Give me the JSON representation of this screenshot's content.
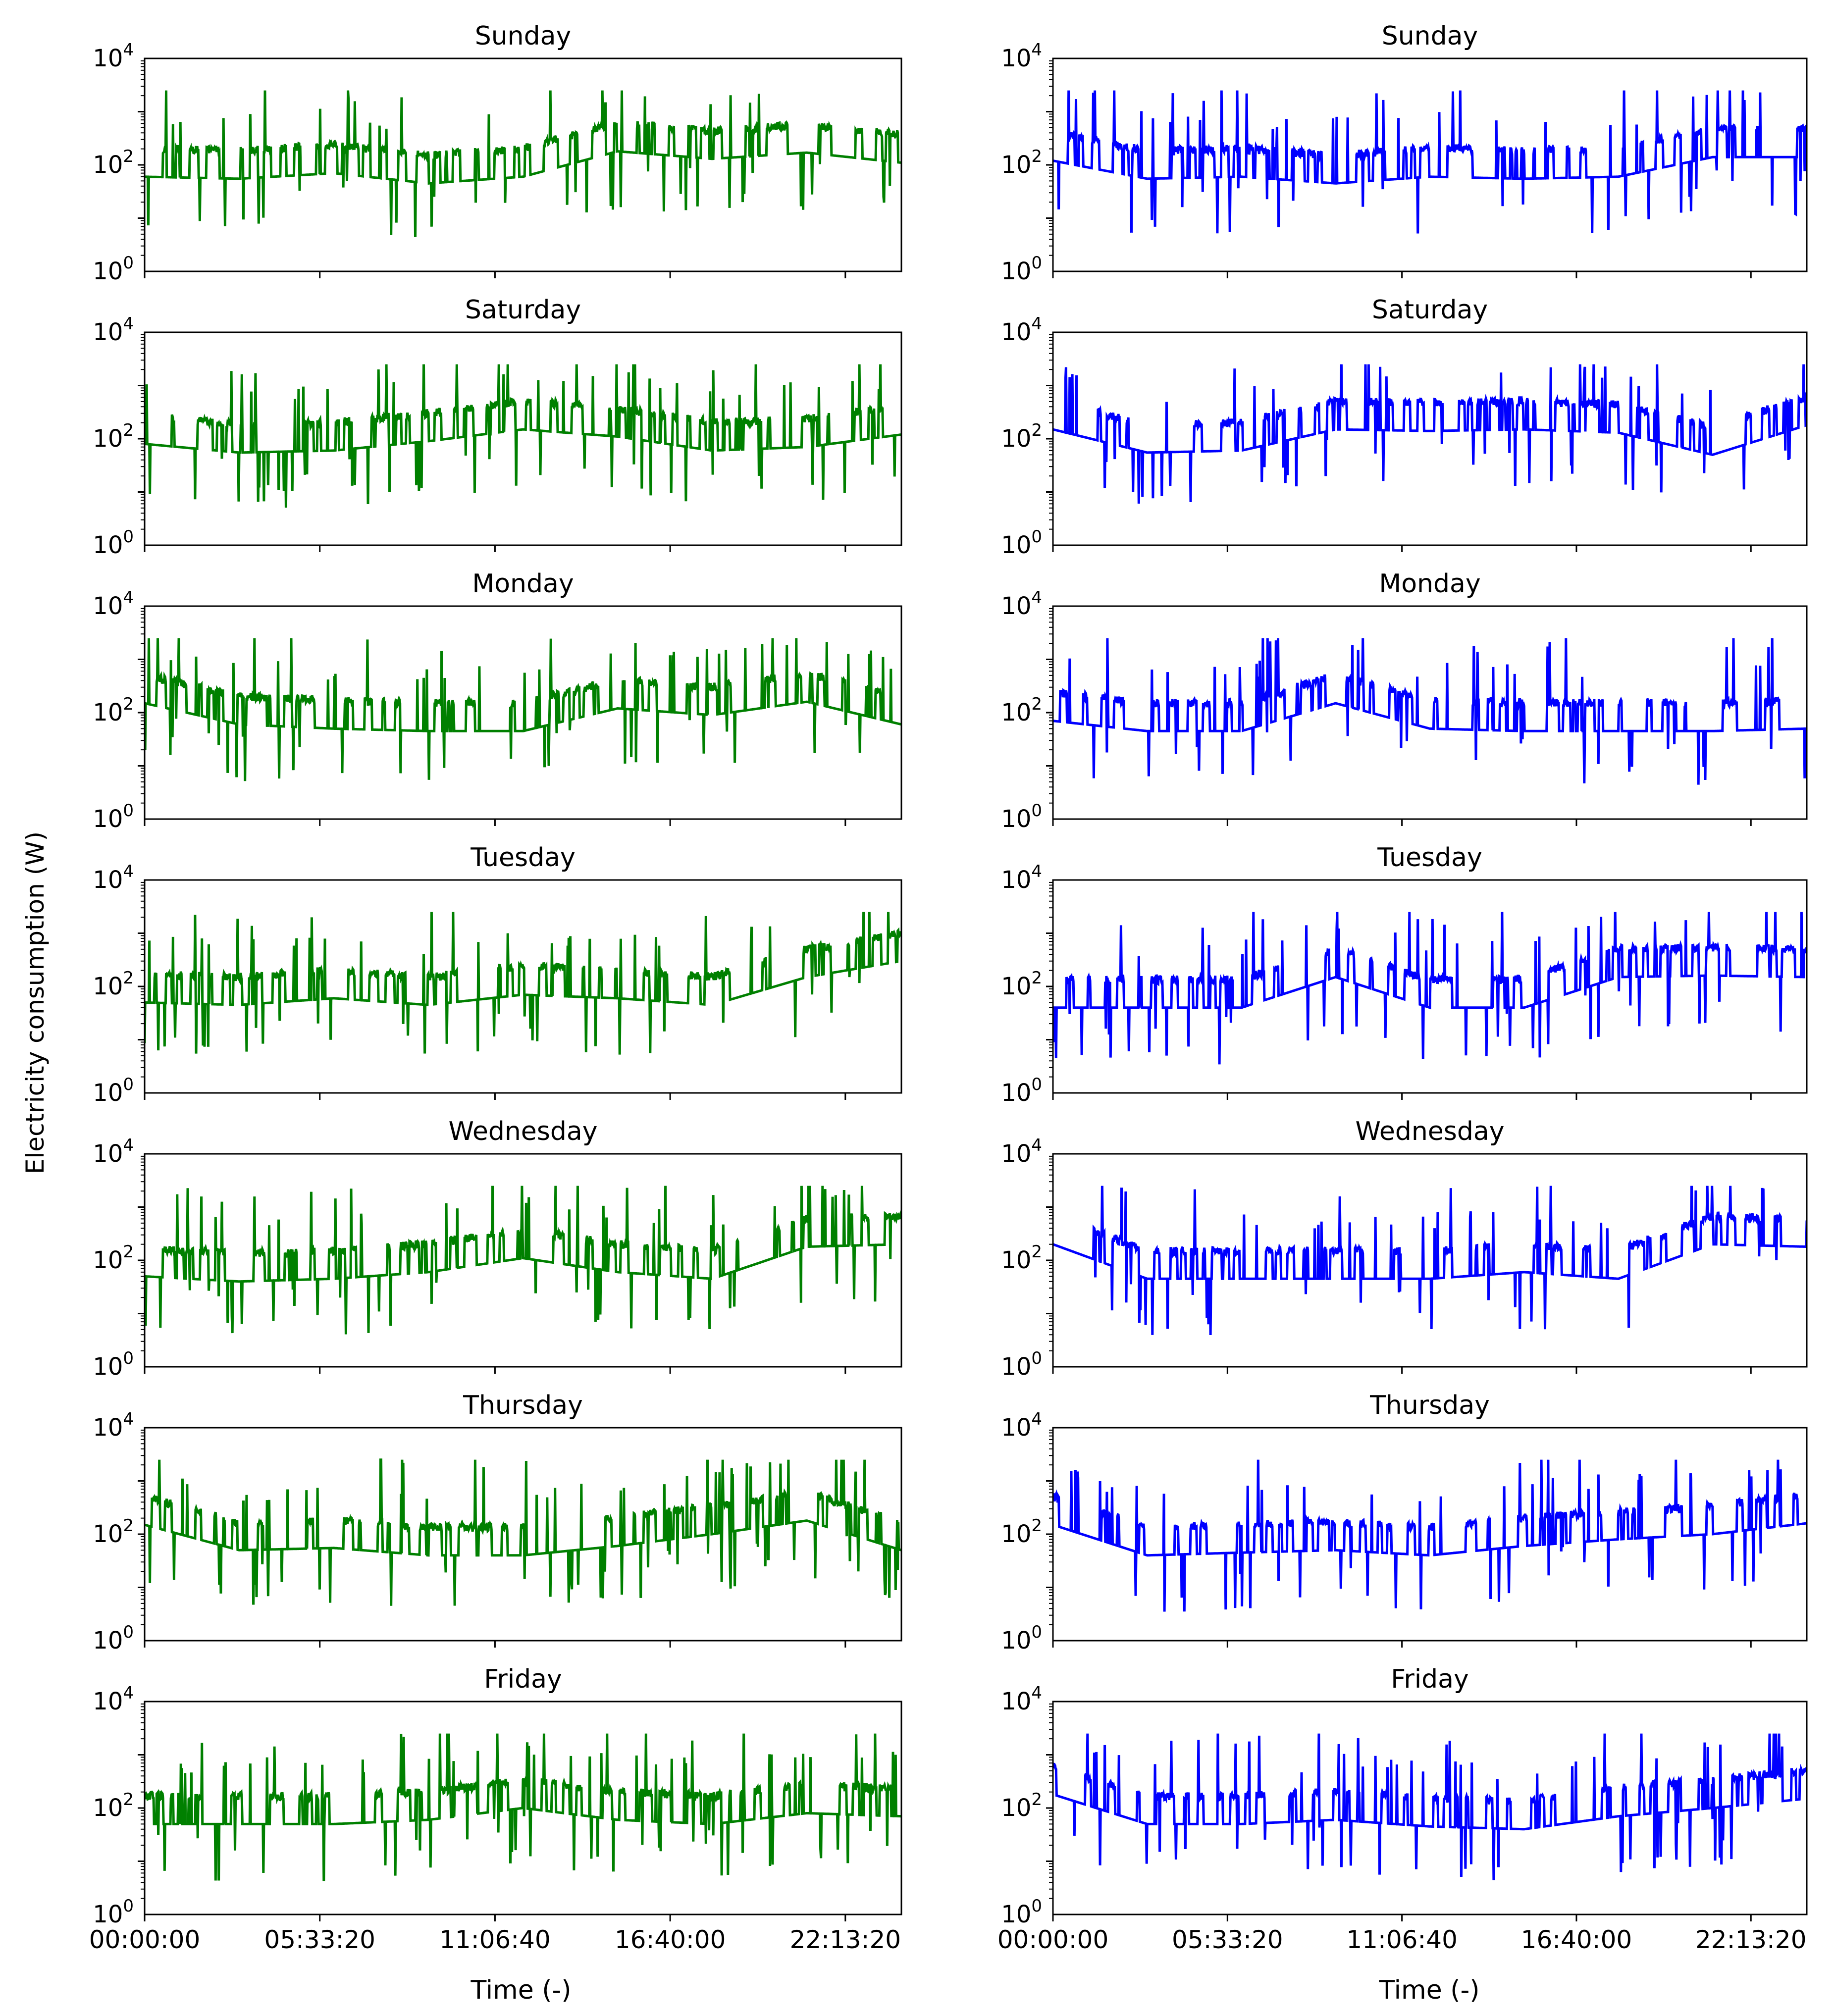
{
  "figure": {
    "ylabel": "Electricity consumption (W)",
    "xlabel": "Time (-)",
    "xticklabels": [
      "00:00:00",
      "05:33:20",
      "11:06:40",
      "16:40:00",
      "22:13:20"
    ],
    "yticklabels": [
      {
        "base": "10",
        "exp": "0"
      },
      {
        "base": "10",
        "exp": "2"
      },
      {
        "base": "10",
        "exp": "4"
      }
    ]
  },
  "colors": {
    "left_series": "#008000",
    "right_series": "#0000ff",
    "axes": "#000000"
  },
  "chart_data": [
    {
      "type": "line",
      "title": "Sunday",
      "column": "left",
      "yscale": "log",
      "ylim": [
        1,
        10000
      ],
      "xlim": [
        "00:00:00",
        "24:00:00"
      ],
      "series": [
        {
          "color": "#008000",
          "x": [
            "00:00:00",
            "03:00:00",
            "06:00:00",
            "09:00:00",
            "12:00:00",
            "15:00:00",
            "18:00:00",
            "21:00:00",
            "24:00:00"
          ],
          "values": [
            60,
            55,
            70,
            45,
            60,
            180,
            130,
            170,
            110
          ]
        }
      ]
    },
    {
      "type": "line",
      "title": "Sunday",
      "column": "right",
      "yscale": "log",
      "ylim": [
        1,
        10000
      ],
      "xlim": [
        "00:00:00",
        "24:00:00"
      ],
      "series": [
        {
          "color": "#0000ff",
          "x": [
            "00:00:00",
            "03:00:00",
            "06:00:00",
            "09:00:00",
            "12:00:00",
            "15:00:00",
            "18:00:00",
            "21:00:00",
            "24:00:00"
          ],
          "values": [
            120,
            55,
            60,
            45,
            60,
            55,
            60,
            140,
            140
          ]
        }
      ]
    },
    {
      "type": "line",
      "title": "Saturday",
      "column": "left",
      "yscale": "log",
      "ylim": [
        1,
        10000
      ],
      "xlim": [
        "00:00:00",
        "24:00:00"
      ],
      "series": [
        {
          "color": "#008000",
          "x": [
            "00:00:00",
            "03:00:00",
            "06:00:00",
            "09:00:00",
            "12:00:00",
            "15:00:00",
            "18:00:00",
            "21:00:00",
            "24:00:00"
          ],
          "values": [
            80,
            55,
            60,
            90,
            150,
            110,
            60,
            70,
            120
          ]
        }
      ]
    },
    {
      "type": "line",
      "title": "Saturday",
      "column": "right",
      "yscale": "log",
      "ylim": [
        1,
        10000
      ],
      "xlim": [
        "00:00:00",
        "24:00:00"
      ],
      "series": [
        {
          "color": "#0000ff",
          "x": [
            "00:00:00",
            "03:00:00",
            "06:00:00",
            "09:00:00",
            "12:00:00",
            "15:00:00",
            "18:00:00",
            "21:00:00",
            "24:00:00"
          ],
          "values": [
            150,
            55,
            60,
            150,
            140,
            150,
            130,
            50,
            180
          ]
        }
      ]
    },
    {
      "type": "line",
      "title": "Monday",
      "column": "left",
      "yscale": "log",
      "ylim": [
        1,
        10000
      ],
      "xlim": [
        "00:00:00",
        "24:00:00"
      ],
      "series": [
        {
          "color": "#008000",
          "x": [
            "00:00:00",
            "03:00:00",
            "06:00:00",
            "09:00:00",
            "12:00:00",
            "15:00:00",
            "18:00:00",
            "21:00:00",
            "24:00:00"
          ],
          "values": [
            150,
            60,
            50,
            45,
            45,
            120,
            90,
            160,
            60
          ]
        }
      ]
    },
    {
      "type": "line",
      "title": "Monday",
      "column": "right",
      "yscale": "log",
      "ylim": [
        1,
        10000
      ],
      "xlim": [
        "00:00:00",
        "24:00:00"
      ],
      "series": [
        {
          "color": "#0000ff",
          "x": [
            "00:00:00",
            "03:00:00",
            "06:00:00",
            "09:00:00",
            "12:00:00",
            "15:00:00",
            "18:00:00",
            "21:00:00",
            "24:00:00"
          ],
          "values": [
            70,
            45,
            45,
            150,
            50,
            45,
            45,
            45,
            50
          ]
        }
      ]
    },
    {
      "type": "line",
      "title": "Tuesday",
      "column": "left",
      "yscale": "log",
      "ylim": [
        1,
        10000
      ],
      "xlim": [
        "00:00:00",
        "24:00:00"
      ],
      "series": [
        {
          "color": "#008000",
          "x": [
            "00:00:00",
            "03:00:00",
            "06:00:00",
            "09:00:00",
            "12:00:00",
            "15:00:00",
            "18:00:00",
            "21:00:00",
            "24:00:00"
          ],
          "values": [
            50,
            45,
            60,
            45,
            70,
            60,
            45,
            150,
            300
          ]
        }
      ]
    },
    {
      "type": "line",
      "title": "Tuesday",
      "column": "right",
      "yscale": "log",
      "ylim": [
        1,
        10000
      ],
      "xlim": [
        "00:00:00",
        "24:00:00"
      ],
      "series": [
        {
          "color": "#0000ff",
          "x": [
            "00:00:00",
            "03:00:00",
            "06:00:00",
            "09:00:00",
            "12:00:00",
            "15:00:00",
            "18:00:00",
            "21:00:00",
            "24:00:00"
          ],
          "values": [
            40,
            40,
            40,
            150,
            40,
            40,
            150,
            160,
            150
          ]
        }
      ]
    },
    {
      "type": "line",
      "title": "Wednesday",
      "column": "left",
      "yscale": "log",
      "ylim": [
        1,
        10000
      ],
      "xlim": [
        "00:00:00",
        "24:00:00"
      ],
      "series": [
        {
          "color": "#008000",
          "x": [
            "00:00:00",
            "03:00:00",
            "06:00:00",
            "09:00:00",
            "12:00:00",
            "15:00:00",
            "18:00:00",
            "21:00:00",
            "24:00:00"
          ],
          "values": [
            50,
            40,
            45,
            60,
            110,
            60,
            45,
            180,
            200
          ]
        }
      ]
    },
    {
      "type": "line",
      "title": "Wednesday",
      "column": "right",
      "yscale": "log",
      "ylim": [
        1,
        10000
      ],
      "xlim": [
        "00:00:00",
        "24:00:00"
      ],
      "series": [
        {
          "color": "#0000ff",
          "x": [
            "00:00:00",
            "03:00:00",
            "06:00:00",
            "09:00:00",
            "12:00:00",
            "15:00:00",
            "18:00:00",
            "21:00:00",
            "24:00:00"
          ],
          "values": [
            200,
            45,
            45,
            45,
            45,
            60,
            45,
            200,
            180
          ]
        }
      ]
    },
    {
      "type": "line",
      "title": "Thursday",
      "column": "left",
      "yscale": "log",
      "ylim": [
        1,
        10000
      ],
      "xlim": [
        "00:00:00",
        "24:00:00"
      ],
      "series": [
        {
          "color": "#008000",
          "x": [
            "00:00:00",
            "03:00:00",
            "06:00:00",
            "09:00:00",
            "12:00:00",
            "15:00:00",
            "18:00:00",
            "21:00:00",
            "24:00:00"
          ],
          "values": [
            150,
            50,
            55,
            40,
            40,
            60,
            100,
            180,
            50
          ]
        }
      ]
    },
    {
      "type": "line",
      "title": "Thursday",
      "column": "right",
      "yscale": "log",
      "ylim": [
        1,
        10000
      ],
      "xlim": [
        "00:00:00",
        "24:00:00"
      ],
      "series": [
        {
          "color": "#0000ff",
          "x": [
            "00:00:00",
            "03:00:00",
            "06:00:00",
            "09:00:00",
            "12:00:00",
            "15:00:00",
            "18:00:00",
            "21:00:00",
            "24:00:00"
          ],
          "values": [
            150,
            40,
            45,
            50,
            40,
            60,
            80,
            100,
            160
          ]
        }
      ]
    },
    {
      "type": "line",
      "title": "Friday",
      "column": "left",
      "yscale": "log",
      "ylim": [
        1,
        10000
      ],
      "xlim": [
        "00:00:00",
        "24:00:00"
      ],
      "series": [
        {
          "color": "#008000",
          "x": [
            "00:00:00",
            "03:00:00",
            "06:00:00",
            "09:00:00",
            "12:00:00",
            "15:00:00",
            "18:00:00",
            "21:00:00",
            "24:00:00"
          ],
          "values": [
            50,
            50,
            50,
            60,
            100,
            60,
            50,
            80,
            70
          ]
        }
      ]
    },
    {
      "type": "line",
      "title": "Friday",
      "column": "right",
      "yscale": "log",
      "ylim": [
        1,
        10000
      ],
      "xlim": [
        "00:00:00",
        "24:00:00"
      ],
      "series": [
        {
          "color": "#0000ff",
          "x": [
            "00:00:00",
            "03:00:00",
            "06:00:00",
            "09:00:00",
            "12:00:00",
            "15:00:00",
            "18:00:00",
            "21:00:00",
            "24:00:00"
          ],
          "values": [
            180,
            50,
            50,
            60,
            45,
            40,
            70,
            100,
            150
          ]
        }
      ]
    }
  ]
}
